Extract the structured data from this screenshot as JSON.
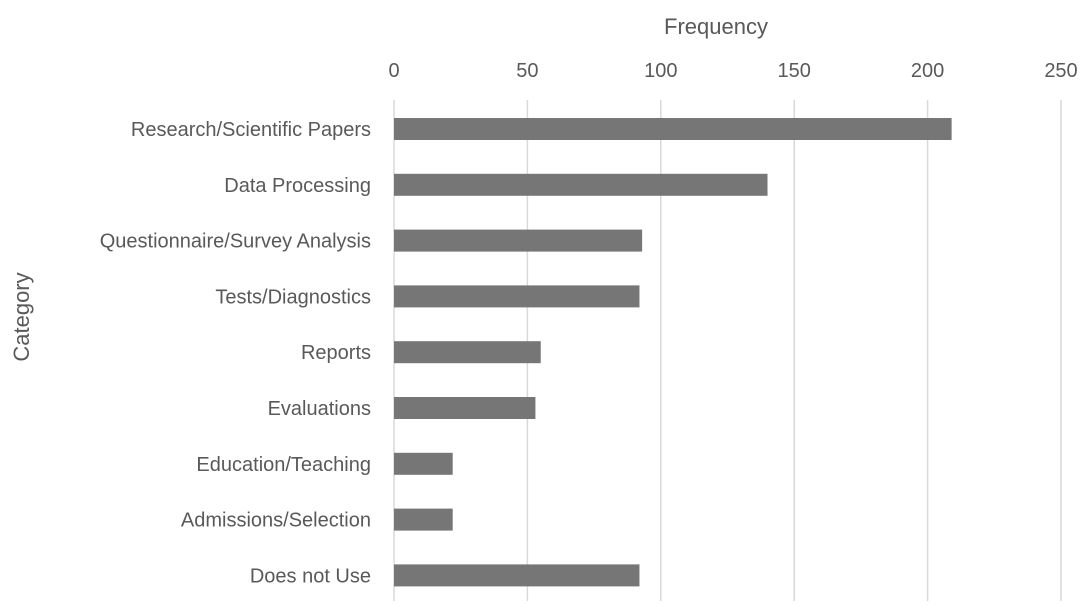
{
  "chart_data": {
    "type": "bar",
    "orientation": "horizontal",
    "title": "",
    "xlabel": "Frequency",
    "ylabel": "Category",
    "xlim": [
      0,
      250
    ],
    "xticks": [
      0,
      50,
      100,
      150,
      200,
      250
    ],
    "x_axis_position": "top",
    "grid": true,
    "legend": "none",
    "categories": [
      "Research/Scientific Papers",
      "Data Processing",
      "Questionnaire/Survey Analysis",
      "Tests/Diagnostics",
      "Reports",
      "Evaluations",
      "Education/Teaching",
      "Admissions/Selection",
      "Does not Use"
    ],
    "values": [
      209,
      140,
      93,
      92,
      55,
      53,
      22,
      22,
      92
    ],
    "colors": {
      "bar": "#767676",
      "grid": "#d9d9d9",
      "text": "#595959"
    }
  }
}
